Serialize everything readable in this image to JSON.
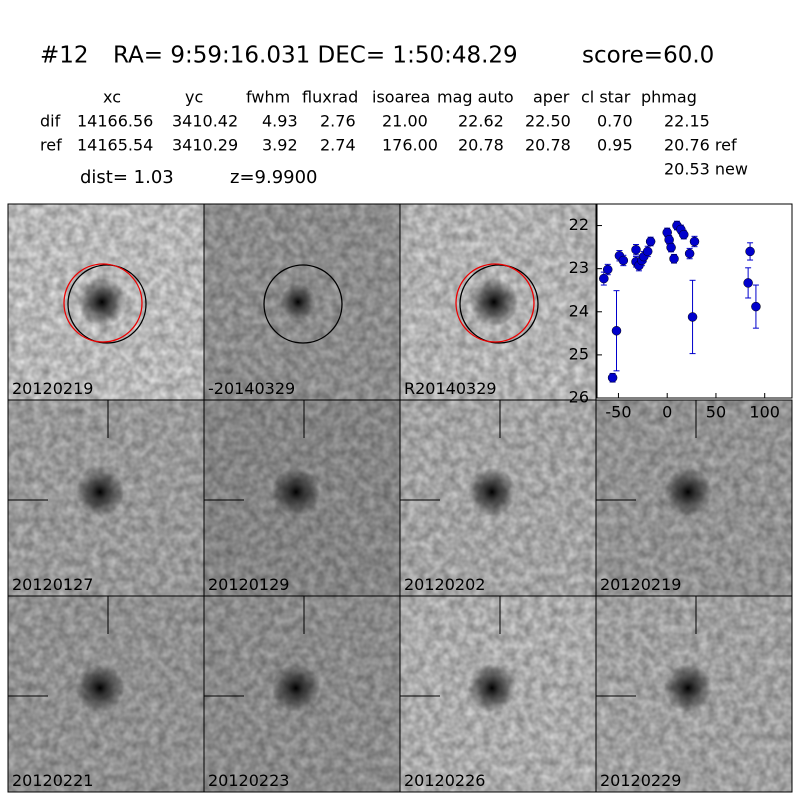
{
  "header": {
    "id": "#12",
    "coords": "RA= 9:59:16.031 DEC= 1:50:48.29",
    "score": "score=60.0"
  },
  "table": {
    "columns": [
      "xc",
      "yc",
      "fwhm",
      "fluxrad",
      "isoarea",
      "mag auto",
      "aper",
      "cl star",
      "phmag"
    ],
    "rows": [
      [
        "dif",
        "14166.56",
        "3410.42",
        "4.93",
        "2.76",
        "21.00",
        "22.62",
        "22.50",
        "0.70",
        "22.15"
      ],
      [
        "ref",
        "14165.54",
        "3410.29",
        "3.92",
        "2.74",
        "176.00",
        "20.78",
        "20.78",
        "0.95",
        "20.76 ref"
      ]
    ],
    "extra": "20.53 new"
  },
  "dist": "dist=  1.03",
  "z": "z=9.9900",
  "stamps": [
    {
      "label": "20120219"
    },
    {
      "label": "-20140329"
    },
    {
      "label": "R20140329"
    },
    {
      "label": "20120127"
    },
    {
      "label": "20120129"
    },
    {
      "label": "20120202"
    },
    {
      "label": "20120219",
      "color": "#ff0000"
    },
    {
      "label": "20120221"
    },
    {
      "label": "20120223"
    },
    {
      "label": "20120226"
    },
    {
      "label": "20120229"
    }
  ],
  "chart_data": {
    "type": "errorbar",
    "color": "#0000cc",
    "x": [
      -65,
      -61,
      -56,
      -52,
      -49,
      -45,
      -32,
      -32,
      -29,
      -26,
      -24,
      -20,
      -17,
      0,
      2,
      4,
      7,
      10,
      14,
      17,
      23,
      26,
      28,
      83,
      85,
      91
    ],
    "values": [
      23.23,
      23.02,
      25.53,
      24.44,
      22.7,
      22.81,
      22.56,
      22.84,
      22.93,
      22.81,
      22.72,
      22.6,
      22.37,
      22.16,
      22.33,
      22.51,
      22.77,
      22.0,
      22.09,
      22.21,
      22.65,
      24.12,
      22.37,
      23.33,
      22.6,
      23.88
    ],
    "errors": [
      0.15,
      0.12,
      0.1,
      0.93,
      0.12,
      0.12,
      0.12,
      0.12,
      0.12,
      0.12,
      0.12,
      0.12,
      0.1,
      0.1,
      0.1,
      0.1,
      0.1,
      0.1,
      0.1,
      0.1,
      0.12,
      0.85,
      0.12,
      0.35,
      0.2,
      0.5
    ],
    "xlim": [
      -72,
      128
    ],
    "ylim": [
      26,
      21.5
    ],
    "xticks": [
      -50,
      0,
      50,
      100
    ],
    "yticks": [
      22,
      23,
      24,
      25,
      26
    ]
  }
}
